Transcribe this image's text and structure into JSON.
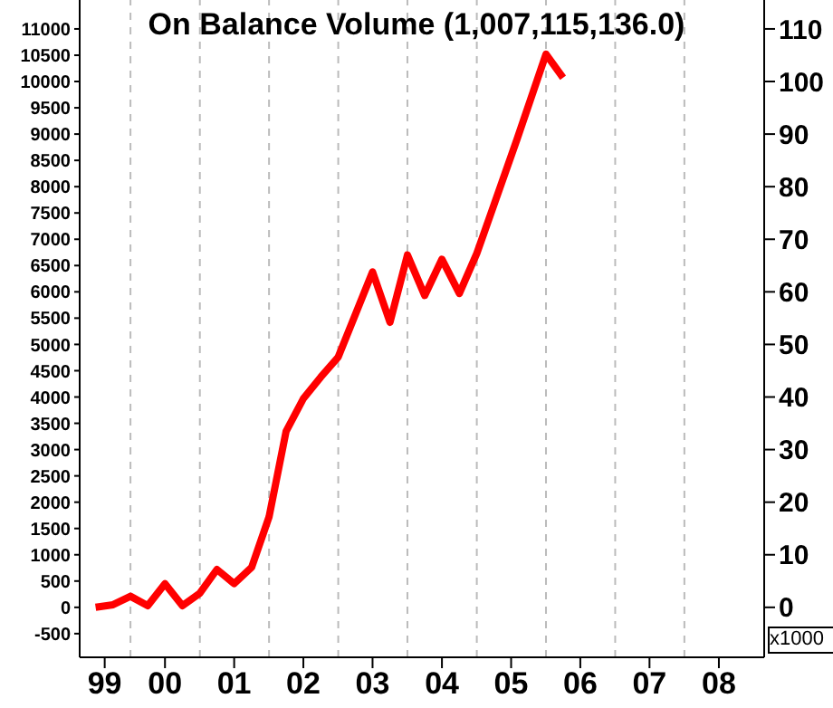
{
  "chart_data": {
    "type": "line",
    "title": "On Balance Volume (1,007,115,136.0)",
    "y2label": "x1000",
    "x": [
      "1999-07",
      "1999-10",
      "2000-01",
      "2000-04",
      "2000-07",
      "2000-10",
      "2001-01",
      "2001-04",
      "2001-07",
      "2001-10",
      "2002-01",
      "2002-04",
      "2002-07",
      "2002-10",
      "2003-01",
      "2003-07",
      "2003-10",
      "2004-01",
      "2004-04",
      "2004-07",
      "2004-10",
      "2005-01",
      "2005-04",
      "2005-08",
      "2006-01",
      "2006-04"
    ],
    "series": [
      {
        "color": "#ff0000",
        "values": [
          0,
          50,
          210,
          30,
          450,
          30,
          270,
          720,
          450,
          760,
          1720,
          3350,
          3970,
          4380,
          4760,
          6380,
          5420,
          6700,
          5930,
          6620,
          5970,
          6730,
          7650,
          8900,
          10520,
          10070
        ]
      }
    ],
    "xlim": [
      "1999-04-08",
      "2009-02-25"
    ],
    "xticks": [
      {
        "value": "1999-08-18",
        "label": "99"
      },
      {
        "value": "2000-07-01",
        "label": "00"
      },
      {
        "value": "2001-07-01",
        "label": "01"
      },
      {
        "value": "2002-07-01",
        "label": "02"
      },
      {
        "value": "2003-07-01",
        "label": "03"
      },
      {
        "value": "2004-07-01",
        "label": "04"
      },
      {
        "value": "2005-07-01",
        "label": "05"
      },
      {
        "value": "2006-07-01",
        "label": "06"
      },
      {
        "value": "2007-07-01",
        "label": "07"
      },
      {
        "value": "2008-07-01",
        "label": "08"
      }
    ],
    "ylim": [
      -950,
      11550
    ],
    "yticks": [
      -500,
      0,
      500,
      1000,
      1500,
      2000,
      2500,
      3000,
      3500,
      4000,
      4500,
      5000,
      5500,
      6000,
      6500,
      7000,
      7500,
      8000,
      8500,
      9000,
      9500,
      10000,
      10500,
      11000
    ],
    "y2lim": [
      -9.5,
      115.5
    ],
    "y2ticks": [
      0,
      10,
      20,
      30,
      40,
      50,
      60,
      70,
      80,
      90,
      100,
      110
    ],
    "ref_lines": [
      {
        "axis": "x",
        "value": "2000-01-01",
        "color": "#bbbbbb",
        "line_style": "dashed"
      },
      {
        "axis": "x",
        "value": "2001-01-01",
        "color": "#bbbbbb",
        "line_style": "dashed"
      },
      {
        "axis": "x",
        "value": "2002-01-01",
        "color": "#bbbbbb",
        "line_style": "dashed"
      },
      {
        "axis": "x",
        "value": "2003-01-01",
        "color": "#bbbbbb",
        "line_style": "dashed"
      },
      {
        "axis": "x",
        "value": "2004-01-01",
        "color": "#bbbbbb",
        "line_style": "dashed"
      },
      {
        "axis": "x",
        "value": "2005-01-01",
        "color": "#bbbbbb",
        "line_style": "dashed"
      },
      {
        "axis": "x",
        "value": "2006-01-01",
        "color": "#bbbbbb",
        "line_style": "dashed"
      },
      {
        "axis": "x",
        "value": "2007-01-01",
        "color": "#bbbbbb",
        "line_style": "dashed"
      },
      {
        "axis": "x",
        "value": "2008-01-01",
        "color": "#bbbbbb",
        "line_style": "dashed"
      }
    ],
    "marker": "none",
    "line_style": "solid",
    "grid": false,
    "legend": false
  }
}
